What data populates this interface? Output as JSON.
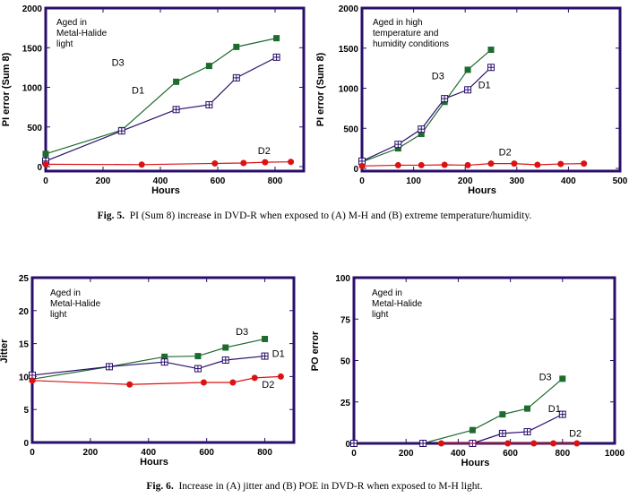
{
  "captions": {
    "fig5": {
      "prefix": "Fig. 5.",
      "text": "PI (Sum 8) increase in DVD-R when exposed to (A) M-H and (B) extreme temperature/humidity."
    },
    "fig6": {
      "prefix": "Fig. 6.",
      "text": "Increase in (A) jitter and (B) POE in DVD-R when exposed to M-H light."
    }
  },
  "colors": {
    "frame": "#2a0e6b",
    "D1": "#2a0e6b",
    "D2": "#dd1111",
    "D3": "#1e6b2e"
  },
  "chart_data": [
    {
      "id": "fig5a",
      "type": "line",
      "title": "",
      "xlabel": "Hours",
      "ylabel": "PI error (Sum 8)",
      "xlim": [
        0,
        900
      ],
      "ylim": [
        0,
        2000
      ],
      "xticks": [
        0,
        200,
        400,
        600,
        800
      ],
      "yticks": [
        0,
        500,
        1000,
        1500,
        2000
      ],
      "annotation": [
        "Aged in",
        "Metal-Halide",
        "light"
      ],
      "grid": false,
      "series": [
        {
          "name": "D3",
          "marker": "filled-square",
          "x": [
            0,
            265,
            455,
            570,
            665,
            805
          ],
          "y": [
            160,
            460,
            1070,
            1270,
            1510,
            1620
          ]
        },
        {
          "name": "D1",
          "marker": "crossed-square",
          "x": [
            0,
            265,
            455,
            570,
            665,
            805
          ],
          "y": [
            70,
            450,
            720,
            780,
            1120,
            1380
          ]
        },
        {
          "name": "D2",
          "marker": "filled-circle",
          "x": [
            0,
            335,
            590,
            690,
            765,
            855
          ],
          "y": [
            30,
            25,
            40,
            45,
            55,
            60
          ]
        }
      ],
      "series_labels": [
        {
          "name": "D3",
          "x": 230,
          "y": 1270
        },
        {
          "name": "D1",
          "x": 300,
          "y": 920
        },
        {
          "name": "D2",
          "x": 740,
          "y": 160
        }
      ]
    },
    {
      "id": "fig5b",
      "type": "line",
      "title": "",
      "xlabel": "Hours",
      "ylabel": "PI error (Sum 8)",
      "xlim": [
        0,
        500
      ],
      "ylim": [
        0,
        2000
      ],
      "xticks": [
        0,
        100,
        200,
        300,
        400,
        500
      ],
      "yticks": [
        0,
        500,
        1000,
        1500,
        2000
      ],
      "annotation": [
        "Aged in high",
        "temperature and",
        "humidity conditions"
      ],
      "grid": false,
      "series": [
        {
          "name": "D3",
          "marker": "filled-square",
          "x": [
            0,
            70,
            115,
            160,
            205,
            250
          ],
          "y": [
            80,
            250,
            430,
            830,
            1230,
            1480
          ]
        },
        {
          "name": "D1",
          "marker": "crossed-square",
          "x": [
            0,
            70,
            115,
            160,
            205,
            250
          ],
          "y": [
            90,
            300,
            490,
            870,
            980,
            1260
          ]
        },
        {
          "name": "D2",
          "marker": "filled-circle",
          "x": [
            0,
            70,
            115,
            160,
            205,
            250,
            295,
            340,
            385,
            430
          ],
          "y": [
            30,
            40,
            40,
            45,
            40,
            60,
            60,
            45,
            55,
            60
          ]
        }
      ],
      "series_labels": [
        {
          "name": "D3",
          "x": 135,
          "y": 1110
        },
        {
          "name": "D1",
          "x": 225,
          "y": 1000
        },
        {
          "name": "D2",
          "x": 265,
          "y": 160
        }
      ]
    },
    {
      "id": "fig6a",
      "type": "line",
      "title": "",
      "xlabel": "Hours",
      "ylabel": "Jitter",
      "xlim": [
        0,
        900
      ],
      "ylim": [
        0,
        25
      ],
      "xticks": [
        0,
        200,
        400,
        600,
        800
      ],
      "yticks": [
        0,
        5,
        10,
        15,
        20,
        25
      ],
      "annotation": [
        "Aged in",
        "Metal-Halide",
        "light"
      ],
      "grid": false,
      "series": [
        {
          "name": "D3",
          "marker": "filled-square",
          "x": [
            0,
            265,
            455,
            570,
            665,
            800
          ],
          "y": [
            9.6,
            11.5,
            13.0,
            13.1,
            14.4,
            15.7
          ]
        },
        {
          "name": "D1",
          "marker": "crossed-square",
          "x": [
            0,
            265,
            455,
            570,
            665,
            800
          ],
          "y": [
            10.2,
            11.5,
            12.2,
            11.2,
            12.5,
            13.1
          ]
        },
        {
          "name": "D2",
          "marker": "filled-circle",
          "x": [
            0,
            335,
            590,
            690,
            765,
            855
          ],
          "y": [
            9.4,
            8.8,
            9.1,
            9.1,
            9.8,
            10.0
          ]
        }
      ],
      "series_labels": [
        {
          "name": "D3",
          "x": 700,
          "y": 16.3
        },
        {
          "name": "D1",
          "x": 825,
          "y": 13.0
        },
        {
          "name": "D2",
          "x": 790,
          "y": 8.3
        }
      ]
    },
    {
      "id": "fig6b",
      "type": "line",
      "title": "",
      "xlabel": "Hours",
      "ylabel": "PO error",
      "xlim": [
        0,
        1000
      ],
      "ylim": [
        0,
        100
      ],
      "xticks": [
        0,
        200,
        400,
        600,
        800,
        1000
      ],
      "yticks": [
        0,
        25,
        50,
        75,
        100
      ],
      "annotation": [
        "Aged in",
        "Metal-Halide",
        "light"
      ],
      "grid": false,
      "series": [
        {
          "name": "D3",
          "marker": "filled-square",
          "x": [
            0,
            265,
            455,
            570,
            665,
            800
          ],
          "y": [
            0,
            0,
            8,
            17.5,
            21,
            39
          ]
        },
        {
          "name": "D1",
          "marker": "crossed-square",
          "x": [
            0,
            265,
            455,
            570,
            665,
            800
          ],
          "y": [
            0,
            0,
            0,
            6,
            7,
            17.5
          ]
        },
        {
          "name": "D2",
          "marker": "filled-circle",
          "x": [
            335,
            590,
            690,
            765,
            855
          ],
          "y": [
            0,
            0,
            0,
            0,
            0
          ]
        }
      ],
      "series_labels": [
        {
          "name": "D3",
          "x": 710,
          "y": 38
        },
        {
          "name": "D1",
          "x": 745,
          "y": 19
        },
        {
          "name": "D2",
          "x": 825,
          "y": 4
        }
      ]
    }
  ]
}
